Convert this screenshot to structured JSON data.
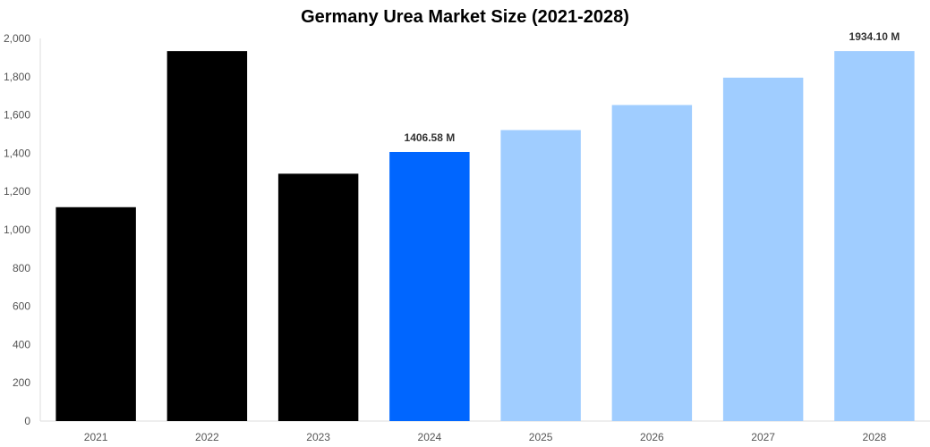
{
  "chart_data": {
    "type": "bar",
    "title": "Germany Urea Market Size (2021-2028)",
    "xlabel": "",
    "ylabel": "",
    "categories": [
      "2021",
      "2022",
      "2023",
      "2024",
      "2025",
      "2026",
      "2027",
      "2028"
    ],
    "values": [
      1118,
      1934,
      1293,
      1406.58,
      1521,
      1652,
      1795,
      1934.1
    ],
    "bar_colors": [
      "#000000",
      "#000000",
      "#000000",
      "#0066ff",
      "#a0cdff",
      "#a0cdff",
      "#a0cdff",
      "#a0cdff"
    ],
    "ylim": [
      0,
      2000
    ],
    "yticks": [
      0,
      200,
      400,
      600,
      800,
      1000,
      1200,
      1400,
      1600,
      1800,
      2000
    ],
    "ytick_labels": [
      "0",
      "200",
      "400",
      "600",
      "800",
      "1,000",
      "1,200",
      "1,400",
      "1,600",
      "1,800",
      "2,000"
    ],
    "data_labels": [
      {
        "index": 3,
        "text": "1406.58 M"
      },
      {
        "index": 7,
        "text": "1934.10 M"
      }
    ],
    "grid": false,
    "legend": "none"
  }
}
